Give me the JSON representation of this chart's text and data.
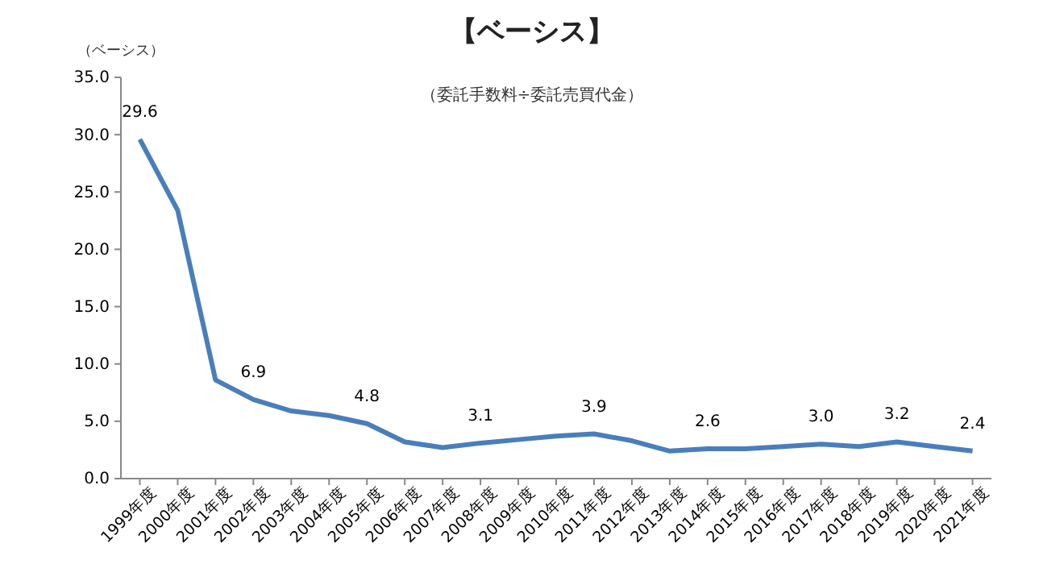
{
  "chart_data": {
    "type": "line",
    "title": "【ベーシス】",
    "subtitle": "（委託手数料÷委託売買代金）",
    "ylabel": "（ベーシス）",
    "categories": [
      "1999年度",
      "2000年度",
      "2001年度",
      "2002年度",
      "2003年度",
      "2004年度",
      "2005年度",
      "2006年度",
      "2007年度",
      "2008年度",
      "2009年度",
      "2010年度",
      "2011年度",
      "2012年度",
      "2013年度",
      "2014年度",
      "2015年度",
      "2016年度",
      "2017年度",
      "2018年度",
      "2019年度",
      "2020年度",
      "2021年度"
    ],
    "series": [
      {
        "color": "#4a7ebb",
        "values": [
          29.6,
          23.4,
          8.6,
          6.9,
          5.9,
          5.5,
          4.8,
          3.2,
          2.7,
          3.1,
          3.4,
          3.7,
          3.9,
          3.3,
          2.4,
          2.6,
          2.6,
          2.8,
          3.0,
          2.8,
          3.2,
          2.8,
          2.4
        ],
        "value_labels": [
          "29.6",
          null,
          null,
          "6.9",
          null,
          null,
          "4.8",
          null,
          null,
          "3.1",
          null,
          null,
          "3.9",
          null,
          null,
          "2.6",
          null,
          null,
          "3.0",
          null,
          "3.2",
          null,
          "2.4"
        ]
      }
    ],
    "ylim": [
      0,
      35
    ],
    "yticks": [
      {
        "value": 0,
        "label": "0.0"
      },
      {
        "value": 5,
        "label": "5.0"
      },
      {
        "value": 10,
        "label": "10.0"
      },
      {
        "value": 15,
        "label": "15.0"
      },
      {
        "value": 20,
        "label": "20.0"
      },
      {
        "value": 25,
        "label": "25.0"
      },
      {
        "value": 30,
        "label": "30.0"
      },
      {
        "value": 35,
        "label": "35.0"
      }
    ],
    "grid": false,
    "marker": "none",
    "line_style": "solid"
  }
}
